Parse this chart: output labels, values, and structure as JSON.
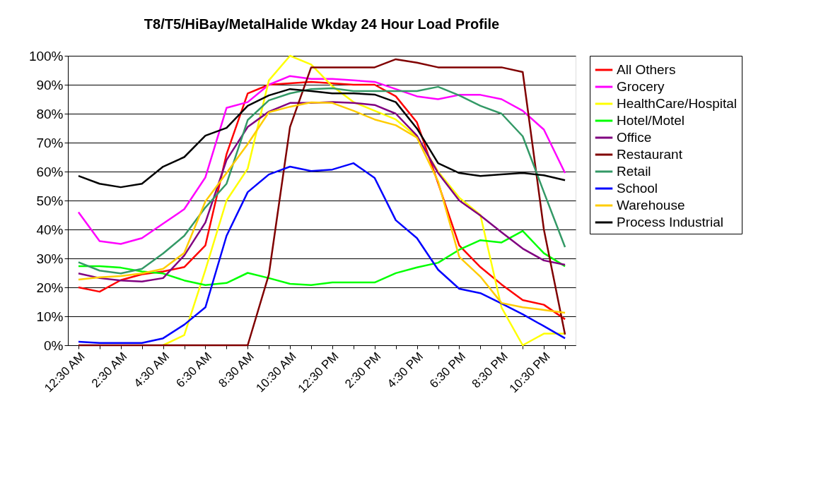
{
  "chart_data": {
    "type": "line",
    "title": "T8/T5/HiBay/MetalHalide Wkday 24 Hour Load Profile",
    "categories": [
      "12:30 AM",
      null,
      "2:30 AM",
      null,
      "4:30 AM",
      null,
      "6:30 AM",
      null,
      "8:30 AM",
      null,
      "10:30 AM",
      null,
      "12:30 PM",
      null,
      "2:30 PM",
      null,
      "4:30 PM",
      null,
      "6:30 PM",
      null,
      "8:30 PM",
      null,
      "10:30 PM",
      null
    ],
    "ylim": [
      0,
      100
    ],
    "yticks": [
      {
        "value": 0,
        "label": "0%"
      },
      {
        "value": 10,
        "label": "10%"
      },
      {
        "value": 20,
        "label": "20%"
      },
      {
        "value": 30,
        "label": "30%"
      },
      {
        "value": 40,
        "label": "40%"
      },
      {
        "value": 50,
        "label": "50%"
      },
      {
        "value": 60,
        "label": "60%"
      },
      {
        "value": 70,
        "label": "70%"
      },
      {
        "value": 80,
        "label": "80%"
      },
      {
        "value": 90,
        "label": "90%"
      },
      {
        "value": 100,
        "label": "100%"
      }
    ],
    "grid": "y",
    "legend": "right",
    "marker": "none",
    "line_style": "solid",
    "series": [
      {
        "name": "All Others",
        "color": "#ff0000",
        "values": [
          20,
          18.5,
          22.5,
          24.5,
          25.5,
          27,
          34.5,
          66,
          87,
          90,
          90.5,
          91,
          90.5,
          90,
          90,
          86,
          77,
          56,
          34.5,
          27,
          21,
          15.6,
          14,
          9
        ]
      },
      {
        "name": "Grocery",
        "color": "#ff00ff",
        "values": [
          46,
          36,
          35,
          37,
          42,
          47,
          58,
          82,
          84,
          90,
          93,
          92,
          92,
          91.5,
          91,
          88.5,
          86,
          85,
          86.5,
          86.5,
          85,
          81,
          74.5,
          59.5
        ]
      },
      {
        "name": "HealthCare/Hospital",
        "color": "#ffff00",
        "values": [
          null,
          null,
          null,
          null,
          0,
          3.5,
          26,
          50,
          61,
          91.5,
          100,
          97,
          89.5,
          84,
          81,
          78,
          72,
          60,
          51,
          45,
          13,
          0,
          4,
          4
        ]
      },
      {
        "name": "Hotel/Motel",
        "color": "#00ff00",
        "values": [
          27.3,
          27.3,
          26.8,
          25.5,
          24.8,
          22.4,
          20.8,
          21.5,
          25,
          23.2,
          21.2,
          20.8,
          21.7,
          21.7,
          21.7,
          24.9,
          26.9,
          28.5,
          33,
          36.3,
          35.5,
          39.5,
          31.8,
          27.3
        ]
      },
      {
        "name": "Office",
        "color": "#800080",
        "values": [
          24.8,
          23.2,
          22.4,
          22,
          23.2,
          31,
          42.4,
          64,
          75.4,
          80.7,
          83.7,
          83.7,
          84,
          83.7,
          83,
          80,
          72.4,
          59.5,
          50,
          44.8,
          39,
          33.4,
          29.3,
          27.8
        ]
      },
      {
        "name": "Restaurant",
        "color": "#800000",
        "values": [
          0,
          0,
          0,
          0,
          0,
          0,
          0,
          0,
          0,
          24.4,
          75.4,
          96,
          96,
          96,
          96,
          98.8,
          97.6,
          96,
          96,
          96,
          96,
          94.4,
          40,
          3.7
        ]
      },
      {
        "name": "Retail",
        "color": "#339966",
        "values": [
          28.7,
          25.8,
          24.8,
          26.4,
          31.7,
          37.8,
          47.6,
          55.8,
          77.8,
          84.6,
          87,
          88.5,
          88.8,
          87.8,
          87.8,
          87.8,
          87.8,
          89.3,
          86.3,
          82.7,
          80,
          72.2,
          52.9,
          33.9
        ]
      },
      {
        "name": "School",
        "color": "#0000ff",
        "values": [
          1.2,
          0.8,
          0.8,
          0.8,
          2.4,
          7.1,
          13.1,
          37.8,
          52.9,
          59,
          61.7,
          60.2,
          60.7,
          62.9,
          57.8,
          43.2,
          37,
          26.1,
          19.5,
          18,
          14.4,
          10.7,
          6.6,
          2.4
        ]
      },
      {
        "name": "Warehouse",
        "color": "#ffcc00",
        "values": [
          22.7,
          23.5,
          23.9,
          24.8,
          26.4,
          31.9,
          49.7,
          59.5,
          69.5,
          80.5,
          82.4,
          83.9,
          83.7,
          81,
          78,
          76,
          71.7,
          56.6,
          30.5,
          23.7,
          14.6,
          13.1,
          12.2,
          11.2
        ]
      },
      {
        "name": "Process Industrial",
        "color": "#000000",
        "values": [
          58.5,
          55.8,
          54.6,
          55.8,
          61.7,
          65,
          72.4,
          75.1,
          82.7,
          86.3,
          88.5,
          87.8,
          87,
          87,
          86.6,
          84,
          74.9,
          62.9,
          59.5,
          58.5,
          59,
          59.5,
          58.7,
          57
        ]
      }
    ]
  }
}
